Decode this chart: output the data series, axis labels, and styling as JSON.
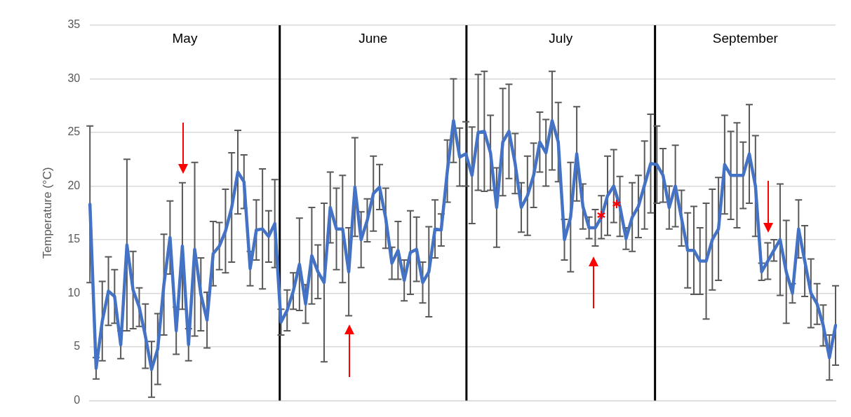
{
  "chart_data": {
    "type": "line",
    "ylabel": "Temperature (°C)",
    "ylim": [
      0,
      35
    ],
    "yticks": [
      0,
      5,
      10,
      15,
      20,
      25,
      30,
      35
    ],
    "grid": "y",
    "tick_labels": "y",
    "annotations": [
      "May",
      "June",
      "July",
      "September"
    ],
    "categories": [
      null,
      null,
      null,
      null,
      null,
      null,
      null,
      null,
      null,
      null,
      null,
      null,
      null,
      null,
      null,
      null,
      null,
      null,
      null,
      null,
      null,
      null,
      null,
      null,
      null,
      null,
      null,
      null,
      null,
      null,
      null,
      null,
      null,
      null,
      null,
      null,
      null,
      null,
      null,
      null,
      null,
      null,
      null,
      null,
      null,
      null,
      null,
      null,
      null,
      null,
      null,
      null,
      null,
      null,
      null,
      null,
      null,
      null,
      null,
      null,
      null,
      null,
      null,
      null,
      null,
      null,
      null,
      null,
      null,
      null,
      null,
      null,
      null,
      null,
      null,
      null,
      null,
      null,
      null,
      null,
      null,
      null,
      null,
      null,
      null,
      null,
      null,
      null,
      null,
      null,
      null,
      null,
      null,
      null,
      null,
      null,
      null,
      null,
      null,
      null,
      null,
      null,
      null,
      null,
      null,
      null,
      null,
      null,
      null,
      null,
      null,
      null,
      null,
      null,
      null,
      null,
      null,
      null,
      null,
      null,
      null,
      null
    ],
    "series": [
      {
        "color": "#4472c4",
        "values": [
          18.3,
          3.0,
          7.4,
          10.2,
          9.7,
          5.2,
          14.5,
          10.3,
          8.7,
          6.0,
          2.9,
          4.8,
          10.8,
          15.2,
          6.5,
          14.4,
          5.2,
          14.1,
          9.9,
          7.5,
          13.7,
          14.4,
          15.8,
          18.0,
          21.3,
          20.4,
          12.3,
          15.9,
          16.0,
          15.3,
          16.5,
          7.3,
          8.4,
          10.2,
          12.7,
          9.0,
          13.5,
          12.0,
          11.0,
          18.0,
          16.0,
          16.0,
          12.0,
          19.9,
          15.0,
          16.8,
          19.3,
          19.9,
          17.0,
          12.8,
          14.0,
          11.2,
          13.8,
          14.1,
          11.0,
          12.0,
          16.0,
          15.9,
          21.4,
          26.1,
          22.7,
          23.0,
          21.0,
          25.0,
          25.1,
          23.1,
          18.0,
          24.1,
          25.1,
          22.1,
          18.0,
          19.1,
          21.0,
          24.1,
          23.1,
          26.1,
          24.1,
          15.0,
          17.1,
          23.0,
          18.1,
          16.1,
          16.1,
          17.1,
          19.1,
          20.0,
          18.1,
          15.1,
          17.1,
          18.1,
          20.1,
          22.1,
          22.0,
          21.0,
          18.0,
          20.0,
          17.0,
          14.0,
          14.0,
          13.0,
          13.0,
          15.0,
          16.0,
          22.0,
          21.0,
          21.0,
          21.0,
          23.0,
          20.0,
          12.0,
          13.0,
          14.0,
          15.0,
          12.0,
          10.0,
          16.0,
          13.0,
          10.0,
          9.0,
          7.0,
          4.0,
          7.0
        ],
        "errors": [
          7.3,
          1.0,
          3.7,
          3.2,
          2.5,
          1.3,
          8.0,
          3.6,
          1.8,
          3.0,
          2.6,
          3.3,
          4.7,
          3.4,
          2.2,
          5.9,
          1.5,
          8.1,
          3.4,
          2.6,
          3.0,
          2.2,
          3.9,
          5.1,
          3.9,
          2.5,
          1.6,
          2.8,
          5.6,
          2.4,
          4.1,
          1.2,
          1.9,
          1.7,
          4.3,
          1.8,
          4.5,
          2.5,
          7.4,
          3.3,
          3.8,
          5.0,
          4.1,
          4.6,
          2.6,
          2.0,
          3.5,
          2.1,
          2.8,
          1.5,
          2.7,
          1.9,
          3.9,
          3.0,
          1.9,
          4.2,
          2.7,
          1.5,
          2.9,
          3.9,
          2.7,
          3.0,
          4.5,
          5.4,
          5.6,
          3.5,
          3.7,
          5.0,
          4.4,
          2.8,
          2.3,
          3.7,
          3.0,
          2.8,
          3.1,
          4.6,
          3.7,
          1.9,
          5.1,
          4.4,
          2.1,
          1.0,
          1.7,
          2.0,
          3.7,
          3.4,
          2.8,
          1.0,
          3.2,
          2.9,
          4.1,
          4.6,
          3.6,
          2.5,
          2.0,
          3.8,
          2.6,
          3.5,
          4.1,
          3.1,
          5.4,
          4.7,
          4.8,
          4.6,
          4.1,
          4.9,
          3.1,
          4.6,
          4.7,
          0.8,
          1.7,
          1.0,
          5.2,
          4.8,
          0.9,
          2.7,
          3.3,
          3.2,
          1.9,
          1.9,
          2.1,
          3.7
        ]
      }
    ]
  }
}
